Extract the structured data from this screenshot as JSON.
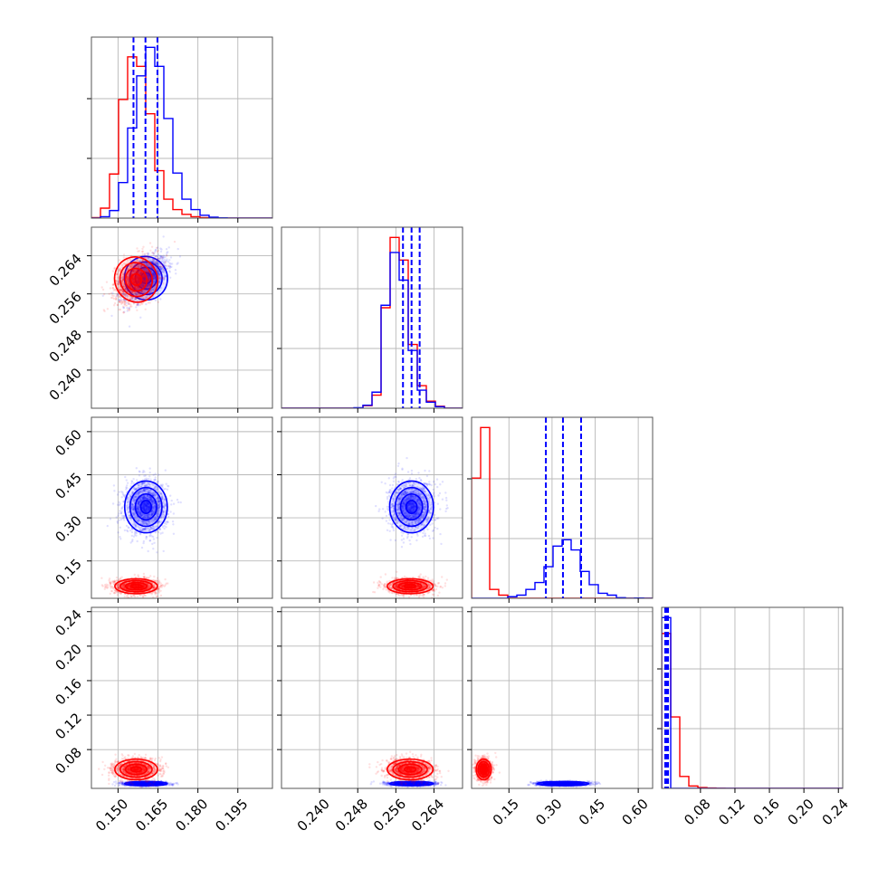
{
  "chart_data": {
    "type": "corner",
    "grid": true,
    "colors": {
      "series_a": "#0000ff",
      "series_b": "#ff0000"
    },
    "series": [
      {
        "color": "#0000ff"
      },
      {
        "color": "#ff0000"
      }
    ],
    "params": [
      {
        "range": [
          0.14,
          0.208
        ],
        "ticks": [
          "0.150",
          "0.165",
          "0.180",
          "0.195"
        ]
      },
      {
        "range": [
          0.232,
          0.27
        ],
        "ticks": [
          "0.240",
          "0.248",
          "0.256",
          "0.264"
        ]
      },
      {
        "range": [
          0.02,
          0.65
        ],
        "ticks": [
          "0.15",
          "0.30",
          "0.45",
          "0.60"
        ]
      },
      {
        "range": [
          0.035,
          0.245
        ],
        "ticks": [
          "0.08",
          "0.12",
          "0.16",
          "0.20",
          "0.24"
        ]
      }
    ],
    "quantiles": [
      {
        "param": 0,
        "values": [
          0.1558,
          0.1603,
          0.1648
        ]
      },
      {
        "param": 1,
        "values": [
          0.2575,
          0.2593,
          0.261
        ]
      },
      {
        "param": 2,
        "values": [
          0.2786,
          0.338,
          0.4011
        ]
      },
      {
        "param": 3,
        "values": [
          0.0391,
          0.0408,
          0.0424
        ]
      }
    ],
    "histograms": [
      {
        "param": 0,
        "bin_edges": [
          0.14,
          0.1434,
          0.1468,
          0.1502,
          0.1536,
          0.157,
          0.1604,
          0.1638,
          0.1672,
          0.1706,
          0.174,
          0.1774,
          0.1808,
          0.1842,
          0.1876,
          0.191,
          0.1944,
          0.1978,
          0.2012,
          0.2046,
          0.208
        ],
        "blue": [
          0,
          0.3,
          1.6,
          7.5,
          19,
          30,
          36,
          32,
          21,
          9.5,
          4,
          1.8,
          0.6,
          0.2,
          0.05,
          0,
          0,
          0,
          0,
          0
        ],
        "red": [
          0.1,
          2.1,
          9.3,
          25,
          34,
          32,
          22,
          10,
          4,
          1.8,
          0.8,
          0.3,
          0.1,
          0,
          0,
          0,
          0,
          0,
          0,
          0
        ]
      },
      {
        "param": 1,
        "bin_edges": [
          0.232,
          0.2339,
          0.2358,
          0.2377,
          0.2396,
          0.2415,
          0.2434,
          0.2453,
          0.2472,
          0.2491,
          0.251,
          0.2529,
          0.2548,
          0.2567,
          0.2586,
          0.2605,
          0.2624,
          0.2643,
          0.2662,
          0.2681,
          0.27
        ],
        "blue": [
          0,
          0,
          0,
          0,
          0,
          0,
          0,
          0,
          0.1,
          0.6,
          3.2,
          20.5,
          31,
          25.5,
          11.5,
          3.6,
          1.2,
          0.3,
          0,
          0
        ],
        "red": [
          0,
          0,
          0,
          0,
          0,
          0,
          0,
          0,
          0,
          0.5,
          2.6,
          20,
          34,
          29.5,
          12.7,
          4.5,
          1.4,
          0.4,
          0,
          0
        ]
      },
      {
        "param": 2,
        "bin_edges": [
          0.02,
          0.0515,
          0.083,
          0.1145,
          0.146,
          0.1775,
          0.209,
          0.2405,
          0.272,
          0.3035,
          0.335,
          0.3665,
          0.398,
          0.4295,
          0.461,
          0.4925,
          0.524,
          0.5555,
          0.587,
          0.6185,
          0.65
        ],
        "blue": [
          0,
          0,
          0,
          0,
          0.5,
          1,
          2.8,
          5,
          10,
          16.5,
          18.5,
          15.3,
          8.5,
          4.3,
          1.6,
          1,
          0.2,
          0,
          0.1,
          0
        ],
        "red": [
          38,
          54,
          2.8,
          1,
          0,
          0,
          0,
          0,
          0,
          0,
          0,
          0,
          0,
          0,
          0,
          0,
          0,
          0,
          0,
          0
        ]
      },
      {
        "param": 3,
        "bin_edges": [
          0.035,
          0.0455,
          0.056,
          0.0665,
          0.077,
          0.0875,
          0.098,
          0.1085,
          0.119,
          0.1295,
          0.14,
          0.1505,
          0.161,
          0.1715,
          0.182,
          0.1925,
          0.203,
          0.2135,
          0.224,
          0.2345,
          0.245
        ],
        "blue": [
          86,
          0,
          0,
          0,
          0,
          0,
          0,
          0,
          0,
          0,
          0,
          0,
          0,
          0,
          0,
          0,
          0,
          0,
          0,
          0
        ],
        "red": [
          78,
          36,
          6,
          1.2,
          0.4,
          0.2,
          0.1,
          0.05,
          0,
          0,
          0,
          0,
          0,
          0,
          0,
          0,
          0,
          0,
          0,
          0
        ]
      }
    ],
    "posteriors_2d": {
      "blue": {
        "mean": [
          0.1605,
          0.2593,
          0.338,
          0.0405
        ],
        "std": [
          0.004,
          0.0023,
          0.045,
          0.0012
        ]
      },
      "red": {
        "mean": [
          0.1568,
          0.259,
          0.062,
          0.057
        ],
        "std": [
          0.004,
          0.0024,
          0.013,
          0.006
        ]
      },
      "correlation": {
        "blue_0_1": 0.5,
        "red_0_1": 0.35
      },
      "contour_levels_sigma": [
        0.5,
        1.0,
        1.5,
        2.0
      ],
      "scatter_points_per_series": 1400
    }
  }
}
